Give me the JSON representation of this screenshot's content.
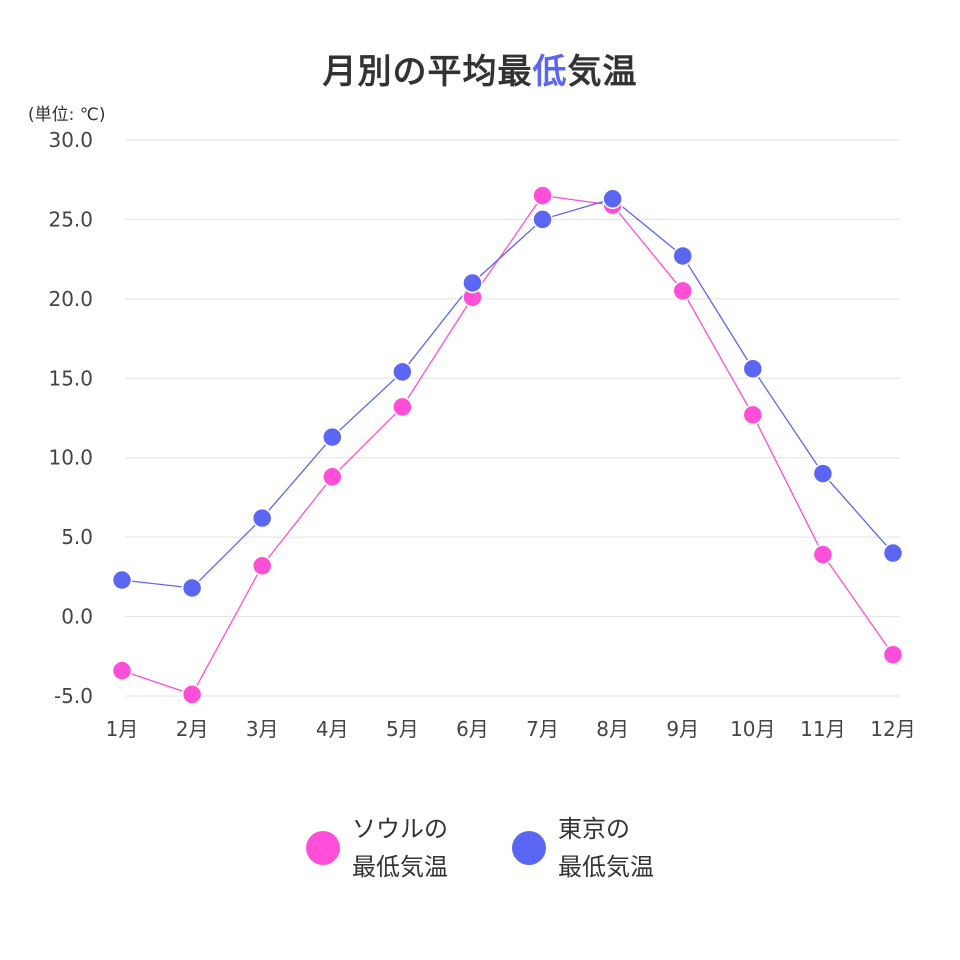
{
  "chart_data": {
    "type": "line",
    "title_parts": [
      "月別の平均最",
      "低",
      "気温"
    ],
    "unit_label": "(単位: ℃)",
    "categories": [
      "1月",
      "2月",
      "3月",
      "4月",
      "5月",
      "6月",
      "7月",
      "8月",
      "9月",
      "10月",
      "11月",
      "12月"
    ],
    "y_ticks": [
      "-5.0",
      "0.0",
      "5.0",
      "10.0",
      "15.0",
      "20.0",
      "25.0",
      "30.0"
    ],
    "ylim": [
      -5,
      30
    ],
    "grid": true,
    "legend_position": "bottom",
    "series": [
      {
        "name": "ソウルの\n最低気温",
        "color": "#ff4fd8",
        "values": [
          -3.4,
          -4.9,
          3.2,
          8.8,
          13.2,
          20.1,
          26.5,
          25.9,
          20.5,
          12.7,
          3.9,
          -2.4
        ]
      },
      {
        "name": "東京の\n最低気温",
        "color": "#5b66f2",
        "values": [
          2.3,
          1.8,
          6.2,
          11.3,
          15.4,
          21.0,
          25.0,
          26.3,
          22.7,
          15.6,
          9.0,
          4.0
        ]
      }
    ]
  }
}
